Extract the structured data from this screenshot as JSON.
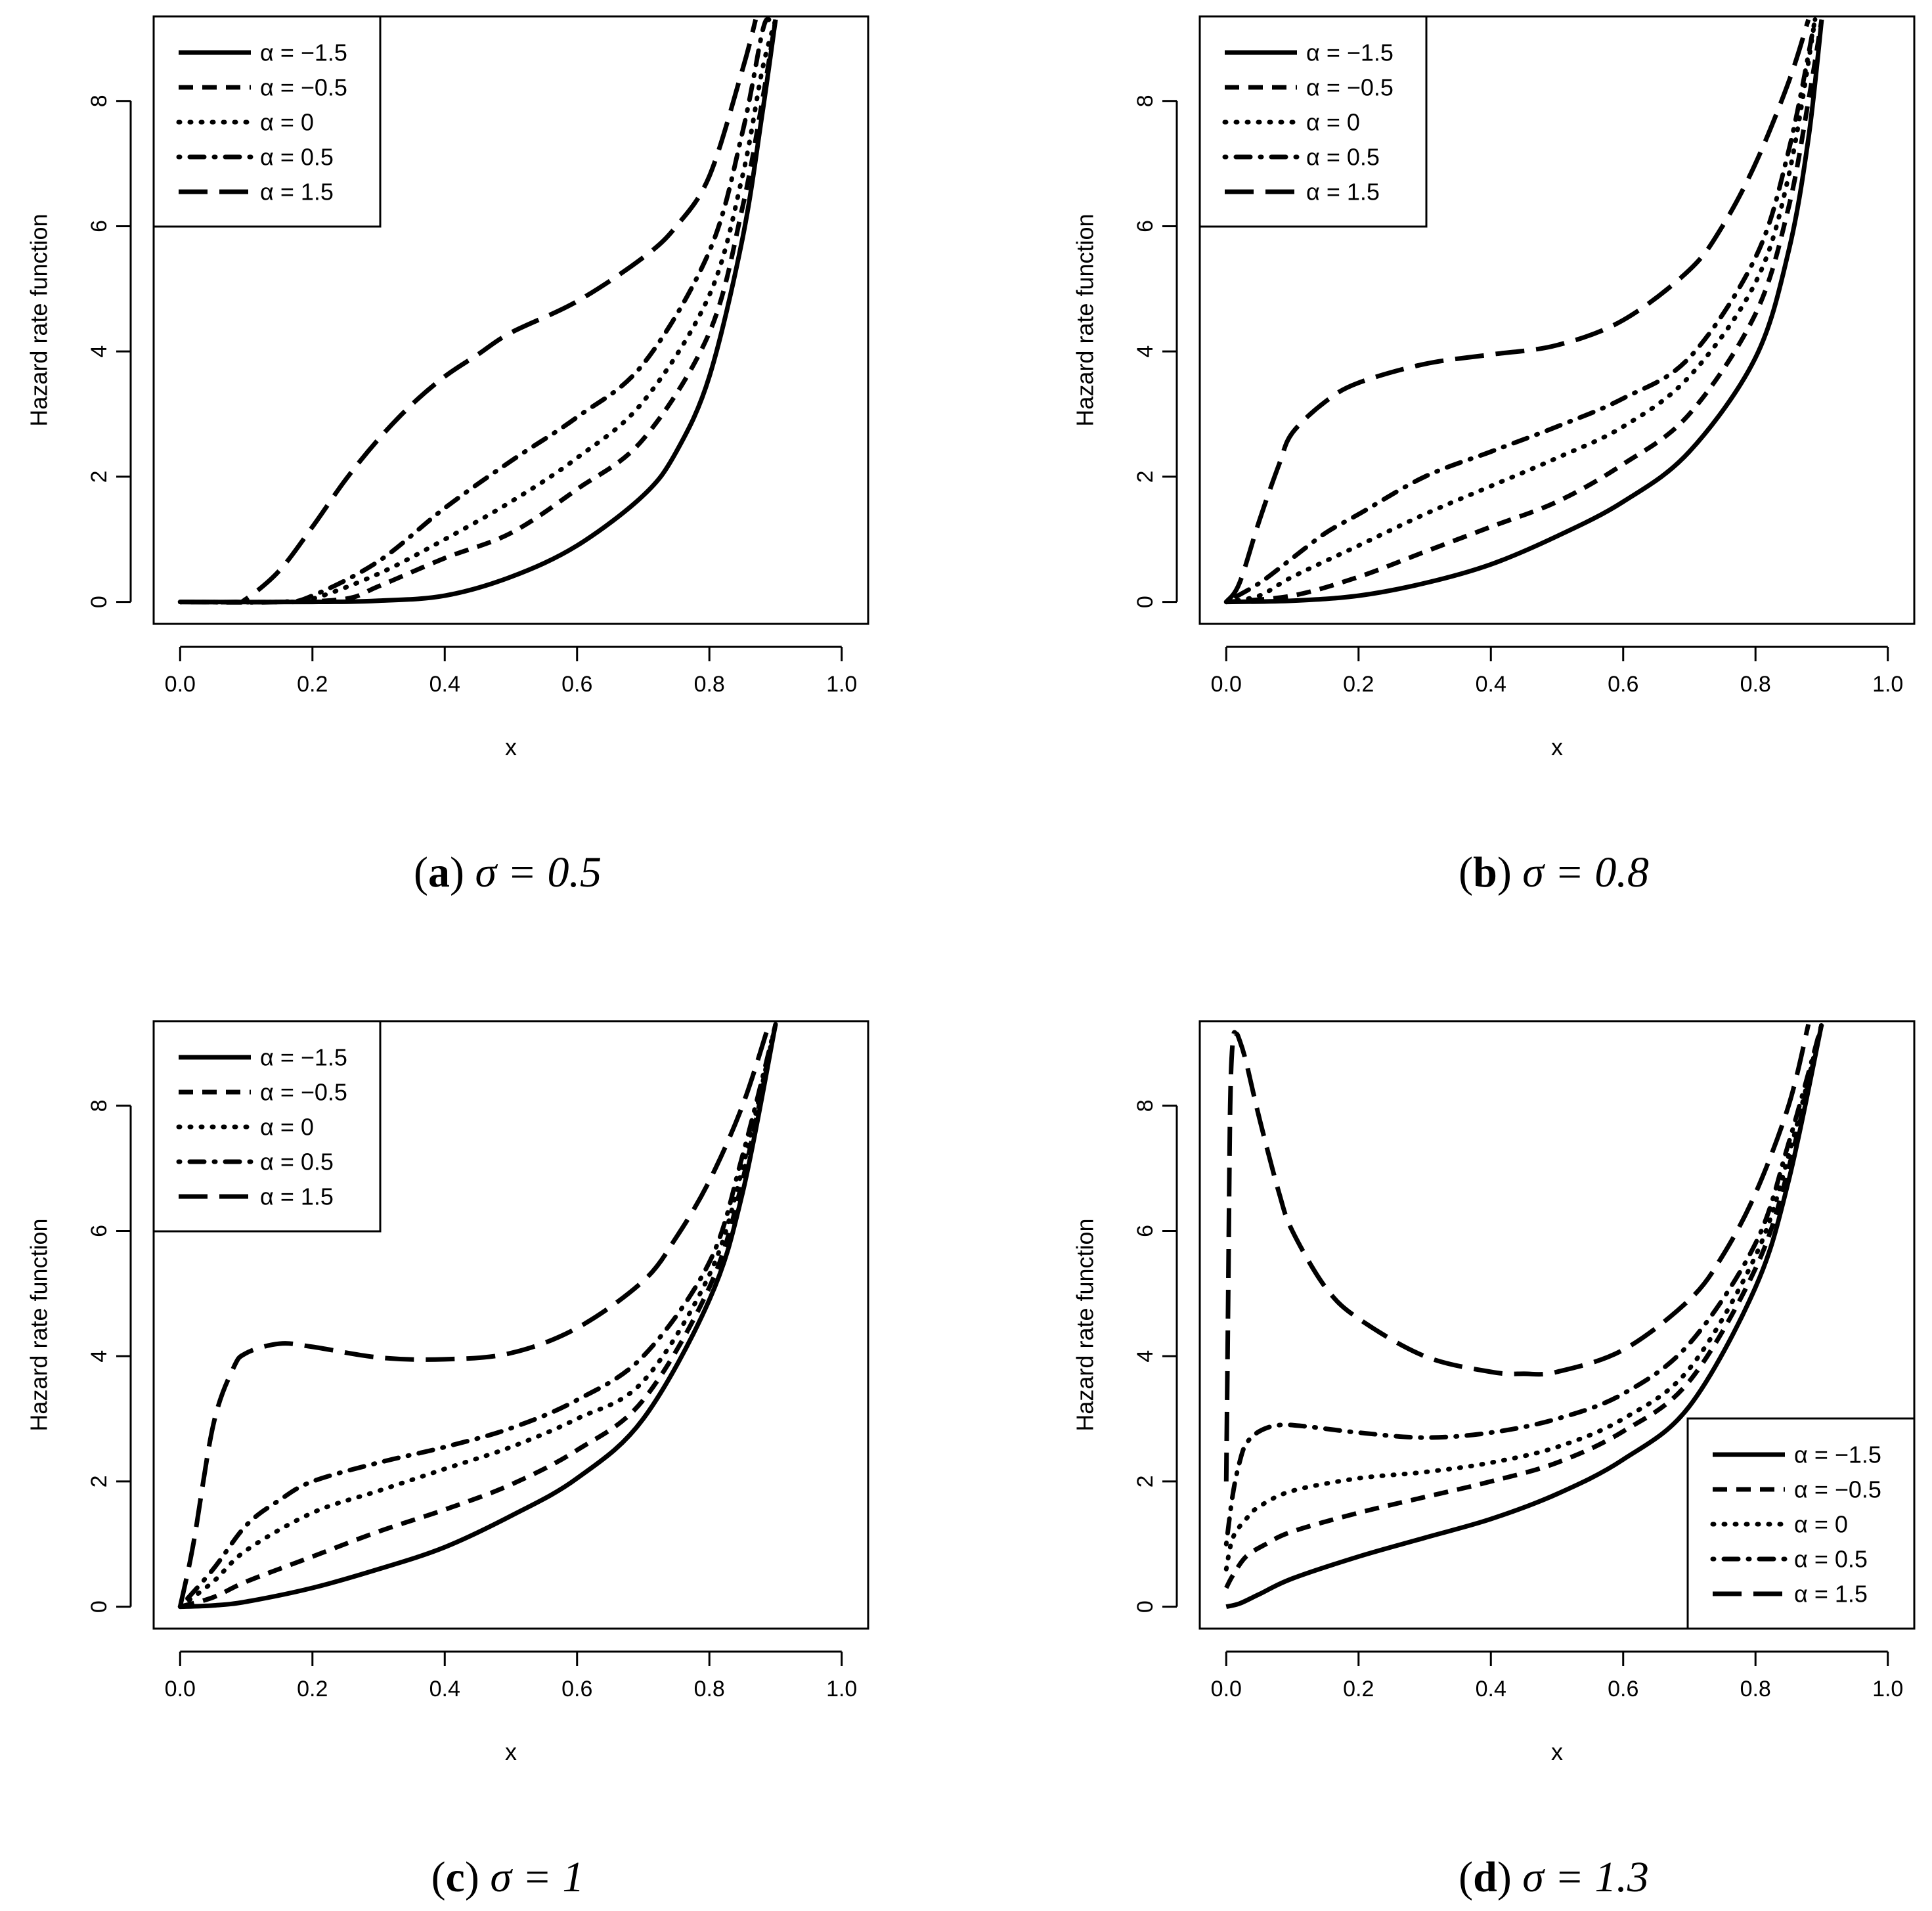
{
  "figure": {
    "panels": [
      {
        "caption": {
          "open": "(",
          "letter": "a",
          "close": ")",
          "expr": "σ = 0.5"
        },
        "legend_position": "top-left"
      },
      {
        "caption": {
          "open": "(",
          "letter": "b",
          "close": ")",
          "expr": "σ = 0.8"
        },
        "legend_position": "top-left"
      },
      {
        "caption": {
          "open": "(",
          "letter": "c",
          "close": ")",
          "expr": "σ = 1"
        },
        "legend_position": "top-left"
      },
      {
        "caption": {
          "open": "(",
          "letter": "d",
          "close": ")",
          "expr": "σ = 1.3"
        },
        "legend_position": "bottom-right"
      }
    ]
  },
  "chart_data": [
    {
      "type": "line",
      "title": "(a) σ = 0.5",
      "xlabel": "x",
      "ylabel": "Hazard rate function",
      "xlim": [
        0,
        1
      ],
      "ylim": [
        0,
        9.3
      ],
      "xticks": [
        "0.0",
        "0.2",
        "0.4",
        "0.6",
        "0.8",
        "1.0"
      ],
      "yticks": [
        "0",
        "2",
        "4",
        "6",
        "8"
      ],
      "legend": [
        "α = −1.5",
        "α = −0.5",
        "α = 0",
        "α = 0.5",
        "α = 1.5"
      ],
      "series": [
        {
          "name": "α = −1.5",
          "style": "solid",
          "x": [
            0,
            0.2,
            0.3,
            0.4,
            0.5,
            0.6,
            0.7,
            0.75,
            0.8,
            0.85,
            0.88,
            0.9
          ],
          "y": [
            0,
            0,
            0.02,
            0.1,
            0.4,
            0.9,
            1.7,
            2.4,
            3.6,
            5.8,
            7.8,
            9.3
          ]
        },
        {
          "name": "α = −0.5",
          "style": "dashed",
          "x": [
            0,
            0.15,
            0.25,
            0.3,
            0.4,
            0.5,
            0.6,
            0.7,
            0.8,
            0.85,
            0.88,
            0.9
          ],
          "y": [
            0,
            0,
            0.05,
            0.25,
            0.7,
            1.1,
            1.8,
            2.6,
            4.3,
            6.3,
            8.0,
            9.3
          ]
        },
        {
          "name": "α = 0",
          "style": "dotted",
          "x": [
            0,
            0.15,
            0.2,
            0.3,
            0.4,
            0.5,
            0.6,
            0.7,
            0.8,
            0.85,
            0.88,
            0.9
          ],
          "y": [
            0,
            0,
            0.05,
            0.45,
            1.0,
            1.6,
            2.3,
            3.2,
            4.9,
            6.8,
            8.5,
            9.3
          ]
        },
        {
          "name": "α = 0.5",
          "style": "dotdash",
          "x": [
            0,
            0.15,
            0.2,
            0.3,
            0.4,
            0.5,
            0.6,
            0.7,
            0.8,
            0.85,
            0.88,
            0.89
          ],
          "y": [
            0,
            0,
            0.1,
            0.65,
            1.5,
            2.25,
            2.95,
            3.8,
            5.6,
            7.5,
            9.1,
            9.3
          ]
        },
        {
          "name": "α = 1.5",
          "style": "longdash",
          "x": [
            0,
            0.08,
            0.1,
            0.15,
            0.2,
            0.25,
            0.3,
            0.35,
            0.4,
            0.45,
            0.5,
            0.6,
            0.7,
            0.75,
            0.8,
            0.85,
            0.87
          ],
          "y": [
            0,
            0,
            0.05,
            0.5,
            1.2,
            1.95,
            2.6,
            3.15,
            3.6,
            3.95,
            4.3,
            4.8,
            5.5,
            6.0,
            6.8,
            8.5,
            9.3
          ]
        }
      ]
    },
    {
      "type": "line",
      "title": "(b) σ = 0.8",
      "xlabel": "x",
      "ylabel": "Hazard rate function",
      "xlim": [
        0,
        1
      ],
      "ylim": [
        0,
        9.3
      ],
      "xticks": [
        "0.0",
        "0.2",
        "0.4",
        "0.6",
        "0.8",
        "1.0"
      ],
      "yticks": [
        "0",
        "2",
        "4",
        "6",
        "8"
      ],
      "legend": [
        "α = −1.5",
        "α = −0.5",
        "α = 0",
        "α = 0.5",
        "α = 1.5"
      ],
      "series": [
        {
          "name": "α = −1.5",
          "style": "solid",
          "x": [
            0,
            0.1,
            0.2,
            0.3,
            0.4,
            0.5,
            0.6,
            0.7,
            0.8,
            0.85,
            0.88,
            0.9
          ],
          "y": [
            0,
            0.02,
            0.1,
            0.3,
            0.6,
            1.05,
            1.6,
            2.4,
            3.9,
            5.6,
            7.4,
            9.3
          ]
        },
        {
          "name": "α = −0.5",
          "style": "dashed",
          "x": [
            0,
            0.1,
            0.2,
            0.3,
            0.4,
            0.5,
            0.6,
            0.7,
            0.8,
            0.85,
            0.88,
            0.9
          ],
          "y": [
            0,
            0.1,
            0.4,
            0.8,
            1.2,
            1.6,
            2.2,
            3.0,
            4.6,
            6.3,
            8.0,
            9.3
          ]
        },
        {
          "name": "α = 0",
          "style": "dotted",
          "x": [
            0,
            0.05,
            0.1,
            0.2,
            0.3,
            0.4,
            0.5,
            0.6,
            0.7,
            0.8,
            0.85,
            0.89
          ],
          "y": [
            0,
            0.1,
            0.4,
            0.9,
            1.4,
            1.85,
            2.3,
            2.8,
            3.6,
            5.1,
            6.8,
            9.3
          ]
        },
        {
          "name": "α = 0.5",
          "style": "dotdash",
          "x": [
            0,
            0.05,
            0.1,
            0.15,
            0.2,
            0.3,
            0.4,
            0.5,
            0.6,
            0.7,
            0.8,
            0.85,
            0.89
          ],
          "y": [
            0,
            0.3,
            0.7,
            1.1,
            1.4,
            2.0,
            2.4,
            2.8,
            3.25,
            3.9,
            5.5,
            7.2,
            9.3
          ]
        },
        {
          "name": "α = 1.5",
          "style": "longdash",
          "x": [
            0,
            0.02,
            0.05,
            0.08,
            0.1,
            0.15,
            0.2,
            0.3,
            0.4,
            0.5,
            0.6,
            0.7,
            0.75,
            0.8,
            0.85,
            0.88
          ],
          "y": [
            0,
            0.3,
            1.3,
            2.2,
            2.7,
            3.2,
            3.5,
            3.8,
            3.95,
            4.1,
            4.5,
            5.3,
            6.0,
            7.0,
            8.3,
            9.3
          ]
        }
      ]
    },
    {
      "type": "line",
      "title": "(c) σ = 1",
      "xlabel": "x",
      "ylabel": "Hazard rate function",
      "xlim": [
        0,
        1
      ],
      "ylim": [
        0,
        9.3
      ],
      "xticks": [
        "0.0",
        "0.2",
        "0.4",
        "0.6",
        "0.8",
        "1.0"
      ],
      "yticks": [
        "0",
        "2",
        "4",
        "6",
        "8"
      ],
      "legend": [
        "α = −1.5",
        "α = −0.5",
        "α = 0",
        "α = 0.5",
        "α = 1.5"
      ],
      "series": [
        {
          "name": "α = −1.5",
          "style": "solid",
          "x": [
            0,
            0.05,
            0.1,
            0.2,
            0.3,
            0.4,
            0.5,
            0.6,
            0.7,
            0.8,
            0.85,
            0.9
          ],
          "y": [
            0,
            0.02,
            0.08,
            0.3,
            0.6,
            0.95,
            1.45,
            2.05,
            3.0,
            4.9,
            6.6,
            9.3
          ]
        },
        {
          "name": "α = −0.5",
          "style": "dashed",
          "x": [
            0,
            0.05,
            0.1,
            0.2,
            0.3,
            0.4,
            0.5,
            0.6,
            0.7,
            0.8,
            0.85,
            0.9
          ],
          "y": [
            0,
            0.15,
            0.4,
            0.8,
            1.2,
            1.55,
            1.95,
            2.5,
            3.3,
            5.1,
            6.8,
            9.3
          ]
        },
        {
          "name": "α = 0",
          "style": "dotted",
          "x": [
            0,
            0.05,
            0.1,
            0.2,
            0.3,
            0.4,
            0.5,
            0.6,
            0.7,
            0.8,
            0.85,
            0.9
          ],
          "y": [
            0,
            0.4,
            0.9,
            1.5,
            1.85,
            2.2,
            2.55,
            3.0,
            3.6,
            5.3,
            7.0,
            9.3
          ]
        },
        {
          "name": "α = 0.5",
          "style": "dotdash",
          "x": [
            0,
            0.05,
            0.1,
            0.15,
            0.2,
            0.3,
            0.4,
            0.5,
            0.6,
            0.7,
            0.8,
            0.85,
            0.9
          ],
          "y": [
            0,
            0.6,
            1.3,
            1.7,
            2.0,
            2.3,
            2.55,
            2.85,
            3.3,
            4.0,
            5.5,
            7.2,
            9.3
          ]
        },
        {
          "name": "α = 1.5",
          "style": "longdash",
          "x": [
            0,
            0.02,
            0.05,
            0.08,
            0.1,
            0.15,
            0.2,
            0.3,
            0.4,
            0.5,
            0.6,
            0.7,
            0.75,
            0.8,
            0.85,
            0.89
          ],
          "y": [
            0,
            1.0,
            2.9,
            3.8,
            4.05,
            4.2,
            4.15,
            3.98,
            3.95,
            4.05,
            4.45,
            5.2,
            5.9,
            6.8,
            8.0,
            9.3
          ]
        }
      ]
    },
    {
      "type": "line",
      "title": "(d) σ = 1.3",
      "xlabel": "x",
      "ylabel": "Hazard rate function",
      "xlim": [
        0,
        1
      ],
      "ylim": [
        0,
        9.3
      ],
      "xticks": [
        "0.0",
        "0.2",
        "0.4",
        "0.6",
        "0.8",
        "1.0"
      ],
      "yticks": [
        "0",
        "2",
        "4",
        "6",
        "8"
      ],
      "legend": [
        "α = −1.5",
        "α = −0.5",
        "α = 0",
        "α = 0.5",
        "α = 1.5"
      ],
      "series": [
        {
          "name": "α = −1.5",
          "style": "solid",
          "x": [
            0,
            0.02,
            0.05,
            0.1,
            0.2,
            0.3,
            0.4,
            0.5,
            0.6,
            0.7,
            0.8,
            0.85,
            0.9
          ],
          "y": [
            0,
            0.05,
            0.2,
            0.45,
            0.8,
            1.1,
            1.4,
            1.8,
            2.35,
            3.2,
            5.1,
            6.8,
            9.3
          ]
        },
        {
          "name": "α = −0.5",
          "style": "dashed",
          "x": [
            0,
            0.01,
            0.03,
            0.06,
            0.1,
            0.2,
            0.3,
            0.4,
            0.5,
            0.6,
            0.7,
            0.8,
            0.85,
            0.9
          ],
          "y": [
            0.3,
            0.5,
            0.8,
            1.0,
            1.2,
            1.5,
            1.75,
            2.0,
            2.3,
            2.8,
            3.6,
            5.4,
            7.0,
            9.3
          ]
        },
        {
          "name": "α = 0",
          "style": "dotted",
          "x": [
            0,
            0.01,
            0.03,
            0.05,
            0.1,
            0.2,
            0.3,
            0.4,
            0.5,
            0.6,
            0.7,
            0.8,
            0.85,
            0.9
          ],
          "y": [
            0.6,
            1.1,
            1.4,
            1.6,
            1.85,
            2.05,
            2.15,
            2.3,
            2.55,
            3.0,
            3.8,
            5.6,
            7.2,
            9.3
          ]
        },
        {
          "name": "α = 0.5",
          "style": "dotdash",
          "x": [
            0,
            0.01,
            0.02,
            0.03,
            0.05,
            0.08,
            0.12,
            0.2,
            0.3,
            0.4,
            0.5,
            0.6,
            0.7,
            0.8,
            0.85,
            0.9
          ],
          "y": [
            1.0,
            1.8,
            2.3,
            2.6,
            2.8,
            2.9,
            2.88,
            2.78,
            2.7,
            2.78,
            3.0,
            3.4,
            4.2,
            5.8,
            7.4,
            9.3
          ]
        },
        {
          "name": "α = 1.5",
          "style": "longdash",
          "x": [
            0,
            0.003,
            0.006,
            0.01,
            0.015,
            0.02,
            0.03,
            0.05,
            0.08,
            0.1,
            0.15,
            0.2,
            0.3,
            0.4,
            0.45,
            0.5,
            0.6,
            0.7,
            0.75,
            0.8,
            0.85,
            0.88
          ],
          "y": [
            2.0,
            5.0,
            8.0,
            9.05,
            9.15,
            9.05,
            8.7,
            7.8,
            6.6,
            6.0,
            5.1,
            4.6,
            4.0,
            3.75,
            3.72,
            3.75,
            4.1,
            4.9,
            5.6,
            6.6,
            8.0,
            9.3
          ]
        }
      ]
    }
  ]
}
